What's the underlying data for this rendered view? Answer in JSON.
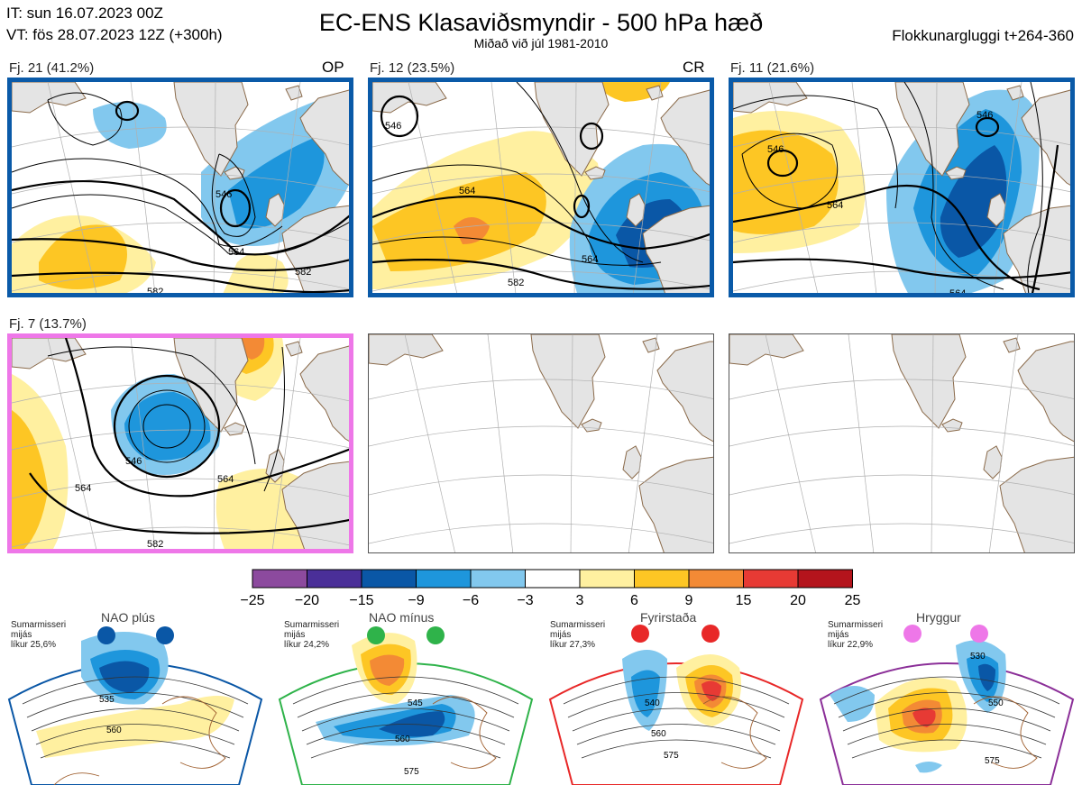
{
  "header": {
    "it": "IT: sun 16.07.2023 00Z",
    "vt": "VT: fös 28.07.2023 12Z  (+300h)",
    "title": "EC-ENS Klasaviðsmyndir - 500 hPa hæð",
    "subtitle": "Miðað við júl 1981-2010",
    "window": "Flokkunargluggi t+264-360"
  },
  "clusters": [
    {
      "label": "Fj. 21 (41.2%)",
      "tag": "OP",
      "frame": "#0a5aa8",
      "contours": {
        "c1": "546",
        "c2": "564",
        "c3": "582",
        "c4": "582"
      }
    },
    {
      "label": "Fj. 12 (23.5%)",
      "tag": "CR",
      "frame": "#0a5aa8",
      "contours": {
        "c1": "546",
        "c2": "564",
        "c3": "564",
        "c4": "582"
      }
    },
    {
      "label": "Fj. 11 (21.6%)",
      "tag": "",
      "frame": "#0a5aa8",
      "contours": {
        "c1": "546",
        "c2": "546",
        "c3": "564",
        "c4": "564"
      }
    },
    {
      "label": "Fj. 7 (13.7%)",
      "tag": "",
      "frame": "#ee77e8",
      "contours": {
        "c1": "546",
        "c2": "564",
        "c3": "564",
        "c4": "582"
      }
    }
  ],
  "colorbar": {
    "ticks": [
      "−25",
      "−20",
      "−15",
      "−9",
      "−6",
      "−3",
      "3",
      "6",
      "9",
      "15",
      "20",
      "25"
    ],
    "colors": [
      "#8c4a9e",
      "#4a2f98",
      "#0a57a6",
      "#1e96dc",
      "#82c8ee",
      "#ffffff",
      "#fff0a0",
      "#fdc624",
      "#f38a35",
      "#e73a34",
      "#b4141c"
    ]
  },
  "regimes": [
    {
      "name": "NAO plús",
      "season": "Sumarmisseri\nmijás\nlíkur 25,6%",
      "dot_color": "#0a57a6",
      "frame": "#0a57a6",
      "contours": {
        "a": "535",
        "b": "560"
      }
    },
    {
      "name": "NAO mínus",
      "season": "Sumarmisseri\nmijás\nlíkur 24,2%",
      "dot_color": "#2fb34a",
      "frame": "#2fb34a",
      "contours": {
        "a": "545",
        "b": "560",
        "c": "575"
      }
    },
    {
      "name": "Fyrirstaða",
      "season": "Sumarmisseri\nmijás\nlíkur 27,3%",
      "dot_color": "#e82828",
      "frame": "#e82828",
      "contours": {
        "a": "540",
        "b": "560",
        "c": "575"
      }
    },
    {
      "name": "Hryggur",
      "season": "Sumarmisseri\nmijás\nlíkur 22,9%",
      "dot_color": "#ee77e8",
      "frame": "#8b2f98",
      "contours": {
        "a": "530",
        "b": "550",
        "c": "575"
      }
    }
  ]
}
